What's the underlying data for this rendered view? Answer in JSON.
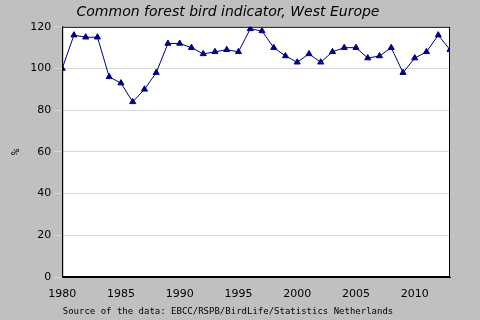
{
  "chart_data": {
    "type": "line",
    "title": "Common forest bird indicator, West Europe",
    "annotations": [
      "Source of the data: EBCC/RSPB/BirdLife/Statistics Netherlands"
    ],
    "y_label": "%",
    "x": [
      1980,
      1981,
      1982,
      1983,
      1984,
      1985,
      1986,
      1987,
      1988,
      1989,
      1990,
      1991,
      1992,
      1993,
      1994,
      1995,
      1996,
      1997,
      1998,
      1999,
      2000,
      2001,
      2002,
      2003,
      2004,
      2005,
      2006,
      2007,
      2008,
      2009,
      2010,
      2011,
      2012,
      2013
    ],
    "values": [
      100,
      116,
      115,
      115,
      96,
      93,
      84,
      90,
      98,
      112,
      112,
      110,
      107,
      108,
      109,
      108,
      119,
      118,
      110,
      106,
      103,
      107,
      103,
      108,
      110,
      110,
      105,
      106,
      110,
      98,
      105,
      108,
      116,
      109
    ],
    "color": "#000080",
    "marker": "triangle",
    "line_style": "solid",
    "xlim": [
      1980,
      2013
    ],
    "xticks": [
      1980,
      1985,
      1990,
      1995,
      2000,
      2005,
      2010
    ],
    "ylim": [
      0,
      120
    ],
    "yticks": [
      0,
      20,
      40,
      60,
      80,
      100,
      120
    ],
    "grid": true
  }
}
